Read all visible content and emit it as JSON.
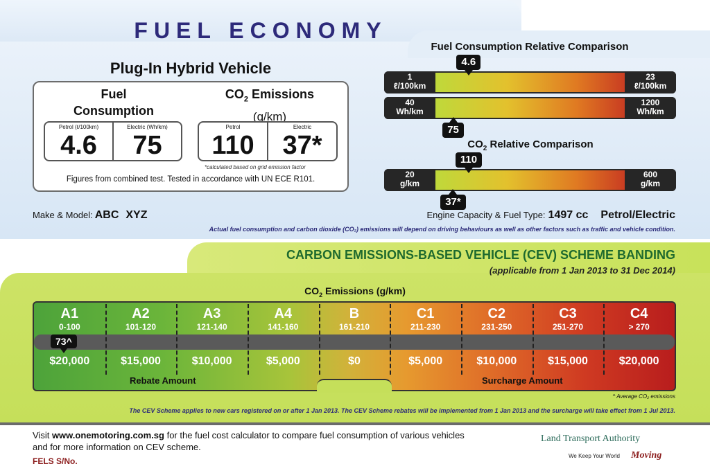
{
  "header": {
    "title": "FUEL ECONOMY",
    "vehicle_type": "Plug-In Hybrid Vehicle"
  },
  "specs": {
    "fuel_consumption_title": "Fuel Consumption",
    "co2_title_pre": "CO",
    "co2_title_sub": "2",
    "co2_title_post": " Emissions",
    "co2_unit": "(g/km)",
    "petrol_fc_label": "Petrol (ℓ/100km)",
    "electric_fc_label": "Electric (Wh/km)",
    "petrol_fc_value": "4.6",
    "electric_fc_value": "75",
    "petrol_co2_label": "Petrol",
    "electric_co2_label": "Electric",
    "petrol_co2_value": "110",
    "electric_co2_value": "37*",
    "calc_note": "*calculated based on grid emission factor",
    "figures_note": "Figures from combined test. Tested in accordance with UN ECE R101."
  },
  "make_model": {
    "label": "Make & Model:",
    "make": "ABC",
    "model": "XYZ"
  },
  "engine": {
    "label": "Engine Capacity & Fuel Type:",
    "capacity": "1497 cc",
    "fuel_type": "Petrol/Electric"
  },
  "disclaimer": "Actual fuel consumption and carbon dioxide (CO₂) emissions will depend on driving behaviours as well as other factors such as traffic and vehicle condition.",
  "fuel_comparison": {
    "heading": "Fuel Consumption Relative Comparison",
    "petrol_bar": {
      "min_value": "1",
      "min_unit": "ℓ/100km",
      "max_value": "23",
      "max_unit": "ℓ/100km",
      "marker": "4.6",
      "marker_fraction": 0.18
    },
    "electric_bar": {
      "min_value": "40",
      "min_unit": "Wh/km",
      "max_value": "1200",
      "max_unit": "Wh/km",
      "marker": "75",
      "marker_fraction": 0.1
    }
  },
  "co2_comparison": {
    "heading_pre": "CO",
    "heading_sub": "2",
    "heading_post": " Relative Comparison",
    "bar": {
      "min_value": "20",
      "min_unit": "g/km",
      "max_value": "600",
      "max_unit": "g/km",
      "marker_top": "110",
      "marker_top_fraction": 0.18,
      "marker_bottom": "37*",
      "marker_bottom_fraction": 0.1
    }
  },
  "cev": {
    "title": "CARBON EMISSIONS-BASED VEHICLE (CEV) SCHEME BANDING",
    "subtitle": "(applicable from 1 Jan 2013 to 31 Dec 2014)",
    "axis_pre": "CO",
    "axis_sub": "2",
    "axis_post": " Emissions (g/km)",
    "bands": [
      {
        "code": "A1",
        "range": "0-100",
        "amount": "$20,000"
      },
      {
        "code": "A2",
        "range": "101-120",
        "amount": "$15,000"
      },
      {
        "code": "A3",
        "range": "121-140",
        "amount": "$10,000"
      },
      {
        "code": "A4",
        "range": "141-160",
        "amount": "$5,000"
      },
      {
        "code": "B",
        "range": "161-210",
        "amount": "$0"
      },
      {
        "code": "C1",
        "range": "211-230",
        "amount": "$5,000"
      },
      {
        "code": "C2",
        "range": "231-250",
        "amount": "$10,000"
      },
      {
        "code": "C3",
        "range": "251-270",
        "amount": "$15,000"
      },
      {
        "code": "C4",
        "range": "> 270",
        "amount": "$20,000"
      }
    ],
    "marker": "73^",
    "rebate_label": "Rebate Amount",
    "surcharge_label": "Surcharge Amount",
    "avg_note": "^ Average CO₂ emissions",
    "scheme_note": "The CEV Scheme applies to new cars registered on or after 1 Jan 2013. The CEV Scheme rebates will be implemented from 1 Jan 2013 and the surcharge will take effect from 1 Jul 2013."
  },
  "footer": {
    "visit_pre": "Visit ",
    "website": "www.onemotoring.com.sg",
    "visit_post": " for the fuel cost calculator to compare fuel consumption of various vehicles and for more information on CEV scheme.",
    "fels": "FELS S/No.",
    "lta_name": "Land Transport Authority",
    "lta_tagline": "We Keep Your World",
    "lta_moving": "Moving"
  }
}
